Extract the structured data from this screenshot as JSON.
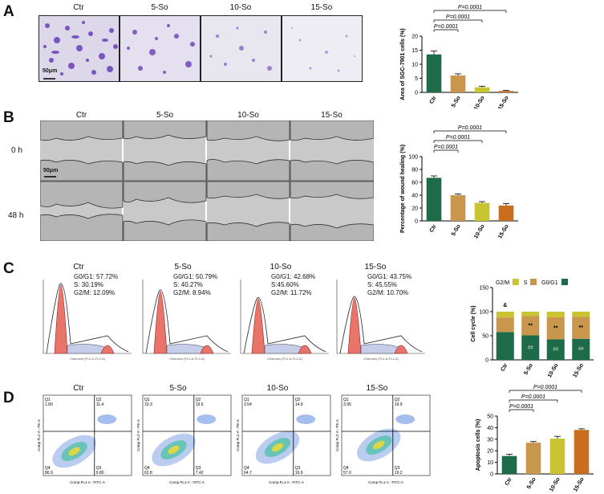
{
  "panels": {
    "A": "A",
    "B": "B",
    "C": "C",
    "D": "D"
  },
  "groups": [
    "Ctr",
    "5-So",
    "10-So",
    "15-So"
  ],
  "panelA": {
    "scale_bar": "50μm",
    "chart_data": {
      "type": "bar",
      "categories": [
        "Ctr",
        "5-So",
        "10-So",
        "15-So"
      ],
      "values": [
        13.5,
        6.0,
        1.8,
        0.5
      ],
      "errors": [
        1.2,
        0.6,
        0.4,
        0.2
      ],
      "ylabel": "Area of SGC-7901 cells (%)",
      "ylim": [
        0,
        20
      ],
      "yticks": [
        "0",
        "5",
        "10",
        "15",
        "20"
      ],
      "colors": [
        "#1e6b4a",
        "#c9964e",
        "#c9c431",
        "#c86e1c"
      ],
      "annotations": [
        "P=0.0001",
        "P=0.0001",
        "P=0.0001"
      ]
    }
  },
  "panelB": {
    "rows": [
      "0 h",
      "48 h"
    ],
    "scale_bar": "50μm",
    "chart_data": {
      "type": "bar",
      "categories": [
        "Ctr",
        "5-So",
        "10-So",
        "15-So"
      ],
      "values": [
        67,
        40,
        28,
        24
      ],
      "errors": [
        3,
        2,
        2,
        3
      ],
      "ylabel": "Percentage of wound healing (%)",
      "ylim": [
        0,
        100
      ],
      "yticks": [
        "0",
        "20",
        "40",
        "60",
        "80",
        "100"
      ],
      "colors": [
        "#1e6b4a",
        "#c9964e",
        "#c9c431",
        "#c86e1c"
      ],
      "annotations": [
        "P=0.0001",
        "P=0.0001",
        "P=0.0001"
      ]
    }
  },
  "panelC": {
    "stats": [
      [
        "G0/G1: 57.72%",
        "S: 30.19%",
        "G2/M: 12.09%"
      ],
      [
        "G0/G1: 50.79%",
        "S: 40.27%",
        "G2/M: 8.94%"
      ],
      [
        "G0/G1: 42.68%",
        "S:45.60%",
        "G2/M: 11.72%"
      ],
      [
        "G0/G1: 43.75%",
        "S: 45.55%",
        "G2/M: 10.70%"
      ]
    ],
    "axis_label": "Channels (FL2-A-FL2-A)",
    "chart_data": {
      "type": "bar",
      "stacked": true,
      "categories": [
        "Ctr",
        "5-So",
        "10-So",
        "15-So"
      ],
      "series": [
        {
          "name": "G0/G1",
          "values": [
            57.72,
            50.79,
            42.68,
            43.75
          ],
          "color": "#1e6b4a"
        },
        {
          "name": "S",
          "values": [
            30.19,
            40.27,
            45.6,
            45.55
          ],
          "color": "#c9964e"
        },
        {
          "name": "G2/M",
          "values": [
            12.09,
            8.94,
            11.72,
            10.7
          ],
          "color": "#c9c431"
        }
      ],
      "ylabel": "Cell cycle (%)",
      "ylim": [
        0,
        150
      ],
      "yticks": [
        "0",
        "50",
        "100",
        "150"
      ],
      "legend": [
        "G2/M",
        "S",
        "G0/G1"
      ],
      "marks_S": [
        "&",
        "**",
        "**",
        "**"
      ],
      "marks_G": [
        "",
        "##",
        "##",
        "##"
      ]
    }
  },
  "panelD": {
    "quadrants": [
      [
        "Q1",
        "Q2",
        "Q4",
        "Q3",
        "1.80",
        "11.4",
        "86.9",
        "9.80"
      ],
      [
        "Q1",
        "Q2",
        "Q4",
        "Q3",
        "10.3",
        "19.5",
        "62.8",
        "7.42"
      ],
      [
        "Q1",
        "Q2",
        "Q4",
        "Q3",
        "3.54",
        "14.9",
        "64.7",
        "16.9"
      ],
      [
        "Q1",
        "Q2",
        "Q4",
        "Q3",
        "3.95",
        "19.9",
        "57.0",
        "19.2"
      ]
    ],
    "xaxis": "Comp-FL1-A : FITC-A",
    "yaxis": "Comp-FL2-A : PE-A",
    "chart_data": {
      "type": "bar",
      "categories": [
        "Ctr",
        "5-So",
        "10-So",
        "15-So"
      ],
      "values": [
        15.5,
        27,
        30.5,
        38
      ],
      "errors": [
        1.5,
        1,
        2,
        1
      ],
      "ylabel": "Apoptosis cells (%)",
      "ylim": [
        0,
        50
      ],
      "yticks": [
        "0",
        "10",
        "20",
        "30",
        "40",
        "50"
      ],
      "colors": [
        "#1e6b4a",
        "#c9964e",
        "#c9c431",
        "#c86e1c"
      ],
      "annotations": [
        "P=0.0001",
        "P=0.0001",
        "P=0.0001"
      ]
    }
  }
}
